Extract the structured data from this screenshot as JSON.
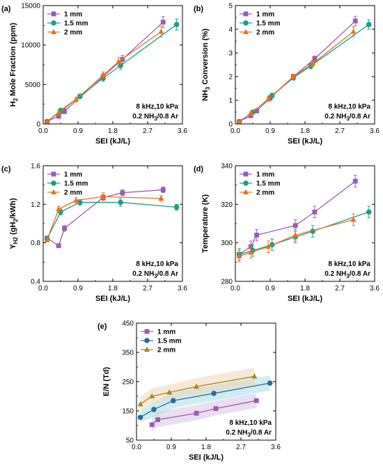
{
  "chart_data": [
    {
      "panel": "(a)",
      "type": "line",
      "xlabel": "SEI (kJ/L)",
      "ylabel_main": "H",
      "ylabel_sub": "2",
      "ylabel_rest": " Mole Fraction (ppm)",
      "xlim": [
        0,
        3.6
      ],
      "ylim": [
        0,
        15000
      ],
      "xticks": [
        0.0,
        0.9,
        1.8,
        2.7,
        3.6
      ],
      "xtick_labels": [
        "0.0",
        "0.9",
        "1.8",
        "2.7",
        "3.6"
      ],
      "yticks": [
        0,
        5000,
        10000,
        15000
      ],
      "ytick_labels": [
        "0",
        "5000",
        "10000",
        "15000"
      ],
      "legend_position": "top-left",
      "annotation": {
        "line1": "8 kHz,10 kPa",
        "line2a": "0.2 NH",
        "line2sub": "3",
        "line2b": "/0.8 Ar"
      },
      "series": [
        {
          "name": "1 mm",
          "color": "#9b59b6",
          "marker": "square",
          "x": [
            0.1,
            0.4,
            0.55,
            1.55,
            2.05,
            3.1
          ],
          "y": [
            300,
            1000,
            1600,
            6000,
            8200,
            12900
          ],
          "err": [
            100,
            300,
            300,
            400,
            500,
            700
          ]
        },
        {
          "name": "1.5 mm",
          "color": "#16a085",
          "marker": "circle",
          "x": [
            0.1,
            0.45,
            0.95,
            1.55,
            2.0,
            3.45
          ],
          "y": [
            300,
            1700,
            3500,
            5800,
            7400,
            12600
          ],
          "err": [
            100,
            300,
            300,
            400,
            500,
            700
          ]
        },
        {
          "name": "2 mm",
          "color": "#e8711a",
          "marker": "triangle",
          "x": [
            0.1,
            0.4,
            0.85,
            1.55,
            1.95,
            3.05
          ],
          "y": [
            300,
            1400,
            3100,
            6200,
            7900,
            11700
          ],
          "err": [
            100,
            300,
            300,
            400,
            500,
            700
          ]
        }
      ]
    },
    {
      "panel": "(b)",
      "type": "line",
      "xlabel": "SEI (kJ/L)",
      "ylabel_main": "NH",
      "ylabel_sub": "3",
      "ylabel_rest": " Conversion (%)",
      "xlim": [
        0,
        3.6
      ],
      "ylim": [
        0,
        5
      ],
      "xticks": [
        0.0,
        0.9,
        1.8,
        2.7,
        3.6
      ],
      "xtick_labels": [
        "0.0",
        "0.9",
        "1.8",
        "2.7",
        "3.6"
      ],
      "yticks": [
        0,
        1,
        2,
        3,
        4,
        5
      ],
      "ytick_labels": [
        "0",
        "1",
        "2",
        "3",
        "4",
        "5"
      ],
      "legend_position": "top-left",
      "annotation": {
        "line1": "8 kHz,10 kPa",
        "line2a": "0.2 NH",
        "line2sub": "3",
        "line2b": "/0.8 Ar"
      },
      "series": [
        {
          "name": "1 mm",
          "color": "#9b59b6",
          "marker": "square",
          "x": [
            0.1,
            0.4,
            0.55,
            0.9,
            1.5,
            2.05,
            3.1
          ],
          "y": [
            0.1,
            0.35,
            0.55,
            1.1,
            2.0,
            2.75,
            4.35
          ],
          "err": [
            0.05,
            0.08,
            0.08,
            0.1,
            0.1,
            0.12,
            0.2
          ]
        },
        {
          "name": "1.5 mm",
          "color": "#16a085",
          "marker": "circle",
          "x": [
            0.1,
            0.45,
            0.95,
            1.5,
            1.95,
            3.45
          ],
          "y": [
            0.1,
            0.5,
            1.2,
            1.95,
            2.45,
            4.2
          ],
          "err": [
            0.05,
            0.08,
            0.1,
            0.1,
            0.12,
            0.2
          ]
        },
        {
          "name": "2 mm",
          "color": "#e8711a",
          "marker": "triangle",
          "x": [
            0.1,
            0.4,
            0.85,
            1.5,
            2.0,
            3.05
          ],
          "y": [
            0.1,
            0.45,
            1.05,
            2.0,
            2.55,
            3.9
          ],
          "err": [
            0.05,
            0.08,
            0.1,
            0.1,
            0.12,
            0.2
          ]
        }
      ]
    },
    {
      "panel": "(c)",
      "type": "line",
      "xlabel": "SEI (kJ/L)",
      "ylabel_main": "Y",
      "ylabel_sub": "H2",
      "ylabel_rest": " (gH",
      "ylabel_rest_sub": "2",
      "ylabel_tail": "/kWh)",
      "xlim": [
        0,
        3.6
      ],
      "ylim": [
        0.4,
        1.6
      ],
      "xticks": [
        0.0,
        0.9,
        1.8,
        2.7,
        3.6
      ],
      "xtick_labels": [
        "0.0",
        "0.9",
        "1.8",
        "2.7",
        "3.6"
      ],
      "yticks": [
        0.4,
        0.8,
        1.2,
        1.6
      ],
      "ytick_labels": [
        "0.4",
        "0.8",
        "1.2",
        "1.6"
      ],
      "legend_position": "top-left",
      "annotation": {
        "line1": "8 kHz,10 kPa",
        "line2a": "0.2 NH",
        "line2sub": "3",
        "line2b": "/0.8 Ar"
      },
      "series": [
        {
          "name": "1 mm",
          "color": "#9b59b6",
          "marker": "square",
          "x": [
            0.1,
            0.4,
            0.55,
            1.55,
            2.05,
            3.1
          ],
          "y": [
            0.85,
            0.77,
            0.95,
            1.27,
            1.32,
            1.35
          ],
          "err": [
            0.02,
            0.02,
            0.03,
            0.03,
            0.03,
            0.03
          ]
        },
        {
          "name": "1.5 mm",
          "color": "#16a085",
          "marker": "circle",
          "x": [
            0.1,
            0.45,
            0.95,
            2.0,
            3.45
          ],
          "y": [
            0.84,
            1.12,
            1.22,
            1.22,
            1.17
          ],
          "err": [
            0.02,
            0.03,
            0.03,
            0.04,
            0.03
          ]
        },
        {
          "name": "2 mm",
          "color": "#e8711a",
          "marker": "triangle",
          "x": [
            0.1,
            0.4,
            0.85,
            1.55,
            3.05
          ],
          "y": [
            0.83,
            1.15,
            1.24,
            1.28,
            1.26
          ],
          "err": [
            0.02,
            0.03,
            0.03,
            0.04,
            0.03
          ]
        }
      ]
    },
    {
      "panel": "(d)",
      "type": "line",
      "xlabel": "SEI (kJ/L)",
      "ylabel_main": "Temperature (K)",
      "xlim": [
        0,
        3.6
      ],
      "ylim": [
        280,
        340
      ],
      "xticks": [
        0.0,
        0.9,
        1.8,
        2.7,
        3.6
      ],
      "xtick_labels": [
        "0.0",
        "0.9",
        "1.8",
        "2.7",
        "3.6"
      ],
      "yticks": [
        280,
        300,
        320,
        340
      ],
      "ytick_labels": [
        "280",
        "300",
        "320",
        "340"
      ],
      "legend_position": "top-left",
      "annotation": {
        "line1": "8 kHz,10 kPa",
        "line2a": "0.2 NH",
        "line2sub": "3",
        "line2b": "/0.8 Ar"
      },
      "series": [
        {
          "name": "1 mm",
          "color": "#9b59b6",
          "marker": "square",
          "x": [
            0.1,
            0.4,
            0.55,
            1.55,
            2.05,
            3.1
          ],
          "y": [
            294,
            298,
            304,
            309,
            316,
            332
          ],
          "err": [
            3,
            3,
            3,
            3,
            3,
            3
          ]
        },
        {
          "name": "1.5 mm",
          "color": "#16a085",
          "marker": "circle",
          "x": [
            0.1,
            0.45,
            0.95,
            1.55,
            2.0,
            3.45
          ],
          "y": [
            294,
            296,
            299,
            303,
            306,
            316
          ],
          "err": [
            3,
            3,
            3,
            3,
            3,
            3
          ]
        },
        {
          "name": "2 mm",
          "color": "#e8711a",
          "marker": "triangle",
          "x": [
            0.1,
            0.4,
            0.85,
            1.55,
            3.05
          ],
          "y": [
            293,
            295,
            298,
            304,
            312
          ],
          "err": [
            3,
            3,
            3,
            3,
            3
          ]
        }
      ]
    },
    {
      "panel": "(e)",
      "type": "line",
      "xlabel": "SEI (kJ/L)",
      "ylabel_main": "E/N (Td)",
      "xlim": [
        0,
        3.6
      ],
      "ylim": [
        50,
        450
      ],
      "xticks": [
        0.0,
        0.9,
        1.8,
        2.7,
        3.6
      ],
      "xtick_labels": [
        "0.0",
        "0.9",
        "1.8",
        "2.7",
        "3.6"
      ],
      "yticks": [
        50,
        150,
        250,
        350,
        450
      ],
      "ytick_labels": [
        "50",
        "150",
        "250",
        "350",
        "450"
      ],
      "legend_position": "top-left",
      "bands": true,
      "annotation": {
        "line1": "8 kHz,10 kPa",
        "line2a": "0.2 NH",
        "line2sub": "3",
        "line2b": "/0.8 Ar"
      },
      "series": [
        {
          "name": "1 mm",
          "color": "#9b59b6",
          "band": "#d9c2e6",
          "marker": "square",
          "x": [
            0.4,
            0.55,
            1.55,
            2.05,
            3.1
          ],
          "y": [
            103,
            120,
            142,
            158,
            185
          ],
          "lo": [
            80,
            95,
            118,
            135,
            160
          ],
          "hi": [
            128,
            148,
            170,
            185,
            210
          ]
        },
        {
          "name": "1.5 mm",
          "color": "#2c6b9e",
          "band": "#a8dde3",
          "marker": "circle",
          "x": [
            0.1,
            0.45,
            0.95,
            2.0,
            3.45
          ],
          "y": [
            128,
            155,
            185,
            210,
            245
          ],
          "lo": [
            110,
            130,
            160,
            185,
            220
          ],
          "hi": [
            150,
            180,
            212,
            238,
            270
          ]
        },
        {
          "name": "2 mm",
          "color": "#a08a1a",
          "band": "#f1d6b8",
          "marker": "triangle",
          "x": [
            0.1,
            0.4,
            0.85,
            1.55,
            3.05
          ],
          "y": [
            173,
            200,
            213,
            233,
            268
          ],
          "lo": [
            150,
            175,
            190,
            208,
            240
          ],
          "hi": [
            198,
            228,
            240,
            262,
            298
          ]
        }
      ]
    }
  ]
}
